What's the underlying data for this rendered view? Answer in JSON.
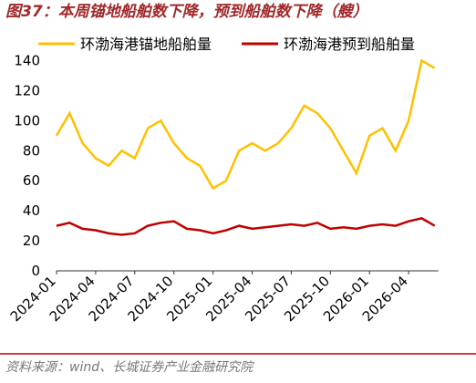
{
  "chart_data": {
    "type": "line",
    "title": "图37：本周锚地船舶数下降，预到船舶数下降（艘）",
    "source": "资料来源：wind、长城证券产业金融研究院",
    "x": [
      "2024-01",
      "2024-02",
      "2024-03",
      "2024-04",
      "2024-05",
      "2024-06",
      "2024-07",
      "2024-08",
      "2024-09",
      "2024-10",
      "2024-11",
      "2024-12",
      "2025-01",
      "2025-02",
      "2025-03",
      "2025-04",
      "2025-05",
      "2025-06",
      "2025-07",
      "2025-08",
      "2025-09",
      "2025-10",
      "2025-11",
      "2025-12",
      "2026-01",
      "2026-02",
      "2026-03",
      "2026-04",
      "2026-05",
      "2026-06"
    ],
    "xticks": [
      "2024-01",
      "2024-04",
      "2024-07",
      "2024-10",
      "2025-01",
      "2025-04",
      "2025-07",
      "2025-10",
      "2026-01",
      "2026-04"
    ],
    "series": [
      {
        "name": "环渤海港锚地船舶量",
        "color": "#FFC000",
        "values": [
          90,
          105,
          85,
          75,
          70,
          80,
          75,
          95,
          100,
          85,
          75,
          70,
          55,
          60,
          80,
          85,
          80,
          85,
          95,
          110,
          105,
          95,
          80,
          65,
          90,
          95,
          80,
          100,
          140,
          135
        ]
      },
      {
        "name": "环渤海港预到船舶量",
        "color": "#C00000",
        "values": [
          30,
          32,
          28,
          27,
          25,
          24,
          25,
          30,
          32,
          33,
          28,
          27,
          25,
          27,
          30,
          28,
          29,
          30,
          31,
          30,
          32,
          28,
          29,
          28,
          30,
          31,
          30,
          33,
          35,
          30
        ]
      }
    ],
    "ylim": [
      0,
      150
    ],
    "yticks": [
      0,
      20,
      40,
      60,
      80,
      100,
      120,
      140
    ]
  }
}
